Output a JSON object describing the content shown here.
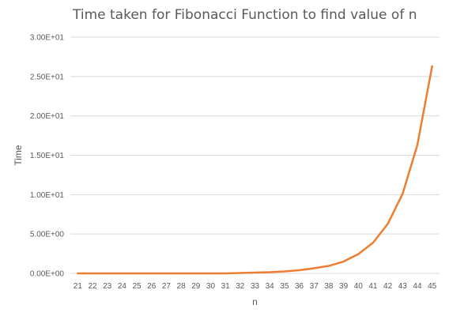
{
  "chart_data": {
    "type": "line",
    "title": "Time taken for Fibonacci Function to find value of n",
    "xlabel": "n",
    "ylabel": "Time",
    "categories": [
      "21",
      "22",
      "23",
      "24",
      "25",
      "26",
      "27",
      "28",
      "29",
      "30",
      "31",
      "32",
      "33",
      "34",
      "35",
      "36",
      "37",
      "38",
      "39",
      "40",
      "41",
      "42",
      "43",
      "44",
      "45"
    ],
    "series": [
      {
        "values": [
          0.0,
          0.0,
          0.0,
          0.0,
          0.0,
          0.0,
          0.0,
          0.0,
          0.0,
          0.0,
          0.0,
          0.05,
          0.1,
          0.15,
          0.25,
          0.4,
          0.65,
          0.95,
          1.5,
          2.45,
          3.9,
          6.3,
          10.1,
          16.3,
          26.3
        ]
      }
    ],
    "ylim": [
      0,
      30
    ],
    "yticks": [
      0,
      5,
      10,
      15,
      20,
      25,
      30
    ],
    "ytick_labels": [
      "0.00E+00",
      "5.00E+00",
      "1.00E+01",
      "1.50E+01",
      "2.00E+01",
      "2.50E+01",
      "3.00E+01"
    ],
    "grid": true,
    "legend": "none",
    "colors": {
      "line": "#ED7D31",
      "grid": "#D9D9D9",
      "text": "#595959"
    }
  }
}
